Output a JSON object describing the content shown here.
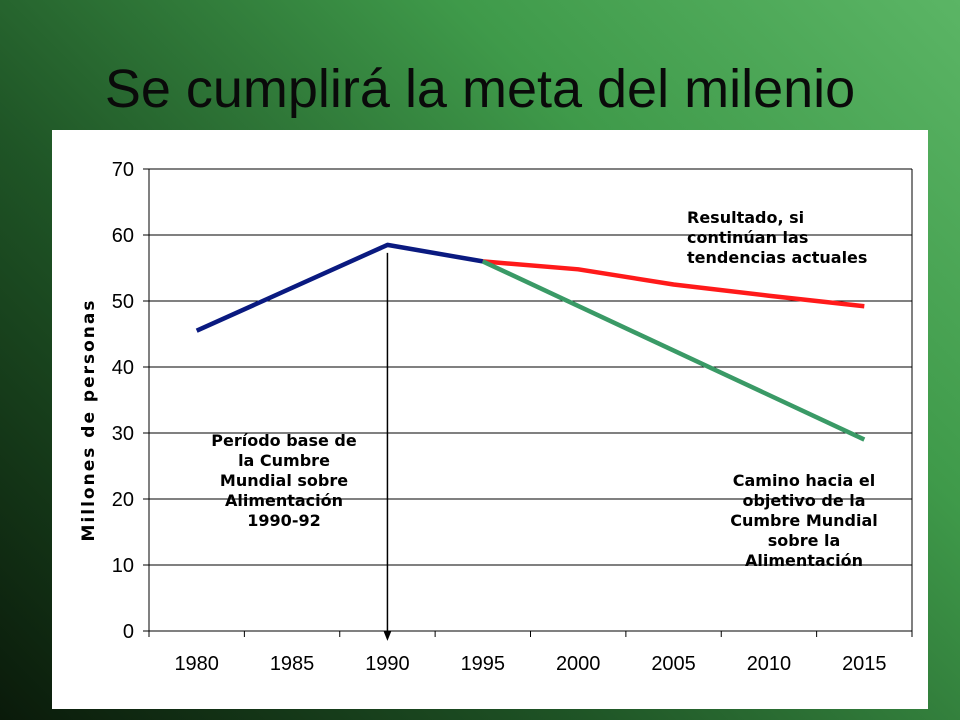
{
  "slide": {
    "title": "Se cumplirá la meta del milenio"
  },
  "chart_data": {
    "type": "line",
    "title": "",
    "xlabel": "",
    "ylabel": "Millones de personas",
    "x_ticks": [
      "1980",
      "1985",
      "1990",
      "1995",
      "2000",
      "2005",
      "2010",
      "2015"
    ],
    "y_ticks": [
      "0",
      "10",
      "20",
      "30",
      "40",
      "50",
      "60",
      "70"
    ],
    "ylim": [
      0,
      70
    ],
    "xlim": [
      1977.5,
      2017.5
    ],
    "grid": true,
    "series": [
      {
        "color": "#0a1a80",
        "points": [
          [
            1980,
            45.5
          ],
          [
            1990,
            58.5
          ],
          [
            1995,
            56
          ]
        ]
      },
      {
        "color": "#ff1a1a",
        "points": [
          [
            1995,
            56
          ],
          [
            2000,
            54.8
          ],
          [
            2005,
            52.5
          ],
          [
            2010,
            50.8
          ],
          [
            2015,
            49.2
          ]
        ]
      },
      {
        "color": "#3a9a66",
        "points": [
          [
            1995,
            56
          ],
          [
            2015,
            29
          ]
        ]
      }
    ],
    "marker_arrow": {
      "x": 1990,
      "from_y": 58.5,
      "to_y": -1.5
    },
    "annotations": {
      "base": [
        "Período base de",
        "la Cumbre",
        "Mundial sobre",
        "Alimentación",
        "1990-92"
      ],
      "trend": [
        "Resultado, si",
        "continúan las",
        "tendencias actuales"
      ],
      "goal": [
        "Camino hacia el",
        "objetivo de la",
        "Cumbre Mundial",
        "sobre la",
        "Alimentación"
      ]
    }
  }
}
